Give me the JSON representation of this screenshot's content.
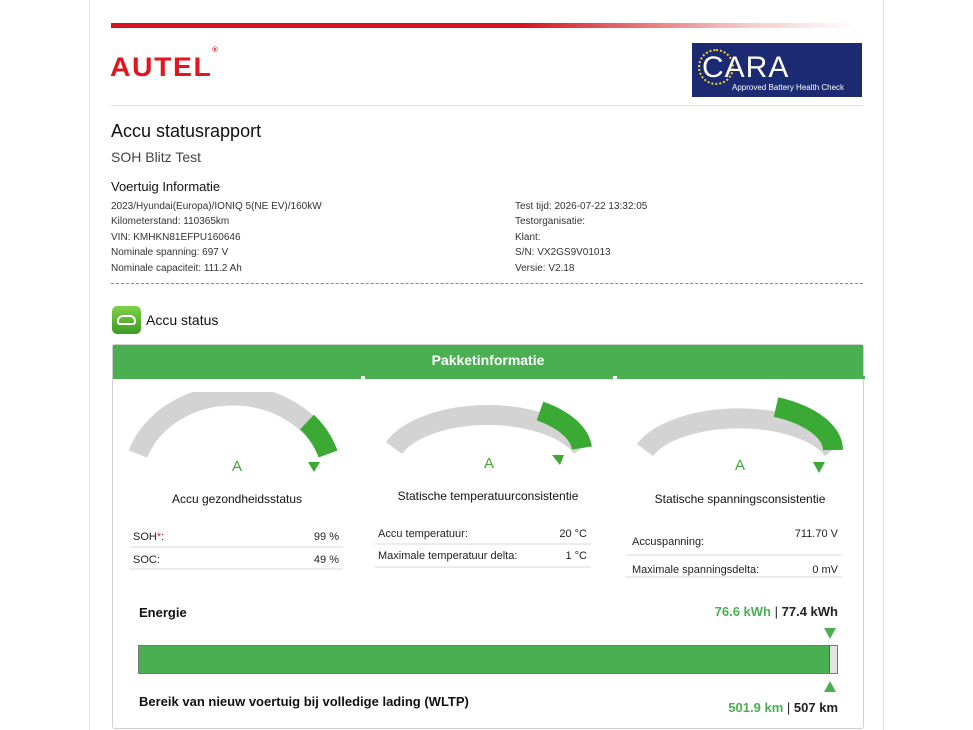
{
  "brand": {
    "logo_text": "AUTEL",
    "logo_mark": "®",
    "color": "#e3161f"
  },
  "cara_badge": {
    "word": "CARA",
    "tagline": "Approved Battery Health Check",
    "bg": "#1c2a73"
  },
  "report": {
    "title": "Accu statusrapport",
    "subtitle": "SOH Blitz Test",
    "vehicle_section": "Voertuig Informatie",
    "left": [
      "2023/Hyundai(Europa)/IONIQ 5(NE EV)/160kW",
      "Kilometerstand: 110365km",
      "VIN: KMHKN81EFPU160646",
      "Nominale spanning: 697 V",
      "Nominale capaciteit: 111.2 Ah"
    ],
    "right": [
      "Test tijd: 2026-07-22 13:32:05",
      "Testorganisatie:",
      "Klant:",
      "S/N: VX2GS9V01013",
      "Versie: V2.18"
    ]
  },
  "battery_status": {
    "label": "Accu status",
    "icon": "battery-car-icon",
    "panel_title": "Pakketinformatie",
    "accent": "#4aaf50",
    "gauges": [
      {
        "grade": "A",
        "title": "Accu gezondheidsstatus",
        "level": 0.95,
        "rows": [
          {
            "key": "SOH",
            "required_mark": "*",
            "suffix": ":",
            "value": "99 %"
          },
          {
            "key": "SOC:",
            "value": "49 %"
          }
        ]
      },
      {
        "grade": "A",
        "title": "Statische temperatuurconsistentie",
        "level": 0.85,
        "rows": [
          {
            "key": "Accu temperatuur:",
            "value": "20 °C"
          },
          {
            "key": "Maximale temperatuur delta:",
            "value": "1 °C"
          }
        ]
      },
      {
        "grade": "A",
        "title": "Statische spanningsconsistentie",
        "level": 0.85,
        "rows": [
          {
            "key": "Accuspanning:",
            "value": "711.70 V"
          },
          {
            "key": "Maximale spanningsdelta:",
            "value": "0 mV"
          }
        ]
      }
    ]
  },
  "energy": {
    "label": "Energie",
    "current": "76.6 kWh",
    "separator": "|",
    "total": "77.4 kWh",
    "fill_fraction": 0.9897
  },
  "range": {
    "label": "Bereik van nieuw voertuig bij volledige lading (WLTP)",
    "current": "501.9 km",
    "separator": "|",
    "total": "507 km"
  }
}
